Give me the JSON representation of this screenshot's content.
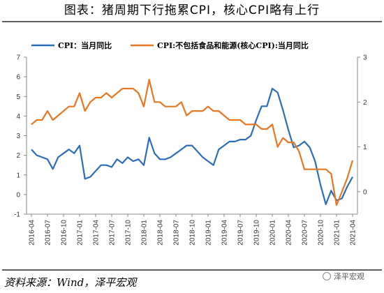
{
  "chart_data": {
    "type": "line",
    "title": "图表：猪周期下行拖累CPI，核心CPI略有上行",
    "source": "资料来源：Wind，泽平宏观",
    "watermark": "泽平宏观",
    "x_ticks": [
      "2016-04",
      "2016-07",
      "2016-10",
      "2017-01",
      "2017-04",
      "2017-07",
      "2017-10",
      "2018-01",
      "2018-04",
      "2018-07",
      "2018-10",
      "2019-01",
      "2019-04",
      "2019-07",
      "2019-10",
      "2020-01",
      "2020-04",
      "2020-07",
      "2020-10",
      "2021-01",
      "2021-04"
    ],
    "x": [
      "2016-04",
      "2016-05",
      "2016-06",
      "2016-07",
      "2016-08",
      "2016-09",
      "2016-10",
      "2016-11",
      "2016-12",
      "2017-01",
      "2017-02",
      "2017-03",
      "2017-04",
      "2017-05",
      "2017-06",
      "2017-07",
      "2017-08",
      "2017-09",
      "2017-10",
      "2017-11",
      "2017-12",
      "2018-01",
      "2018-02",
      "2018-03",
      "2018-04",
      "2018-05",
      "2018-06",
      "2018-07",
      "2018-08",
      "2018-09",
      "2018-10",
      "2018-11",
      "2018-12",
      "2019-01",
      "2019-02",
      "2019-03",
      "2019-04",
      "2019-05",
      "2019-06",
      "2019-07",
      "2019-08",
      "2019-09",
      "2019-10",
      "2019-11",
      "2019-12",
      "2020-01",
      "2020-02",
      "2020-03",
      "2020-04",
      "2020-05",
      "2020-06",
      "2020-07",
      "2020-08",
      "2020-09",
      "2020-10",
      "2020-11",
      "2020-12",
      "2021-01",
      "2021-02",
      "2021-03",
      "2021-04"
    ],
    "left_axis": {
      "ylim": [
        -1,
        7
      ],
      "ticks": [
        -1,
        0,
        1,
        2,
        3,
        4,
        5,
        6,
        7
      ]
    },
    "right_axis": {
      "ylim": [
        -0.5,
        3
      ],
      "ticks": [
        0,
        1,
        2,
        3
      ]
    },
    "series": [
      {
        "name": "CPI：当月同比",
        "axis": "left",
        "color": "#2A6EBB",
        "values": [
          2.3,
          2.0,
          1.9,
          1.8,
          1.3,
          1.9,
          2.1,
          2.3,
          2.1,
          2.5,
          0.8,
          0.9,
          1.2,
          1.5,
          1.5,
          1.4,
          1.8,
          1.6,
          1.9,
          1.7,
          1.8,
          1.5,
          2.9,
          2.1,
          1.8,
          1.8,
          1.9,
          2.1,
          2.3,
          2.5,
          2.5,
          2.2,
          1.9,
          1.7,
          1.5,
          2.3,
          2.5,
          2.7,
          2.7,
          2.8,
          2.8,
          3.0,
          3.8,
          4.5,
          4.5,
          5.4,
          5.2,
          4.3,
          3.3,
          2.4,
          2.5,
          2.7,
          2.4,
          1.7,
          0.5,
          -0.5,
          0.2,
          -0.3,
          -0.2,
          0.4,
          0.9
        ]
      },
      {
        "name": "CPI:不包括食品和能源(核心CPI):当月同比",
        "axis": "right",
        "color": "#E87722",
        "values": [
          1.5,
          1.6,
          1.6,
          1.8,
          1.6,
          1.7,
          1.8,
          1.9,
          1.9,
          2.2,
          1.8,
          2.0,
          2.1,
          2.1,
          2.2,
          2.1,
          2.2,
          2.3,
          2.3,
          2.3,
          2.2,
          1.9,
          2.5,
          2.0,
          2.0,
          1.9,
          1.9,
          1.9,
          2.0,
          1.7,
          1.8,
          1.8,
          1.8,
          1.9,
          1.8,
          1.8,
          1.7,
          1.6,
          1.6,
          1.6,
          1.5,
          1.5,
          1.5,
          1.4,
          1.4,
          1.5,
          1.0,
          1.2,
          1.1,
          1.1,
          0.9,
          0.5,
          0.5,
          0.5,
          0.5,
          0.5,
          0.4,
          -0.3,
          0.0,
          0.3,
          0.7
        ]
      }
    ]
  }
}
